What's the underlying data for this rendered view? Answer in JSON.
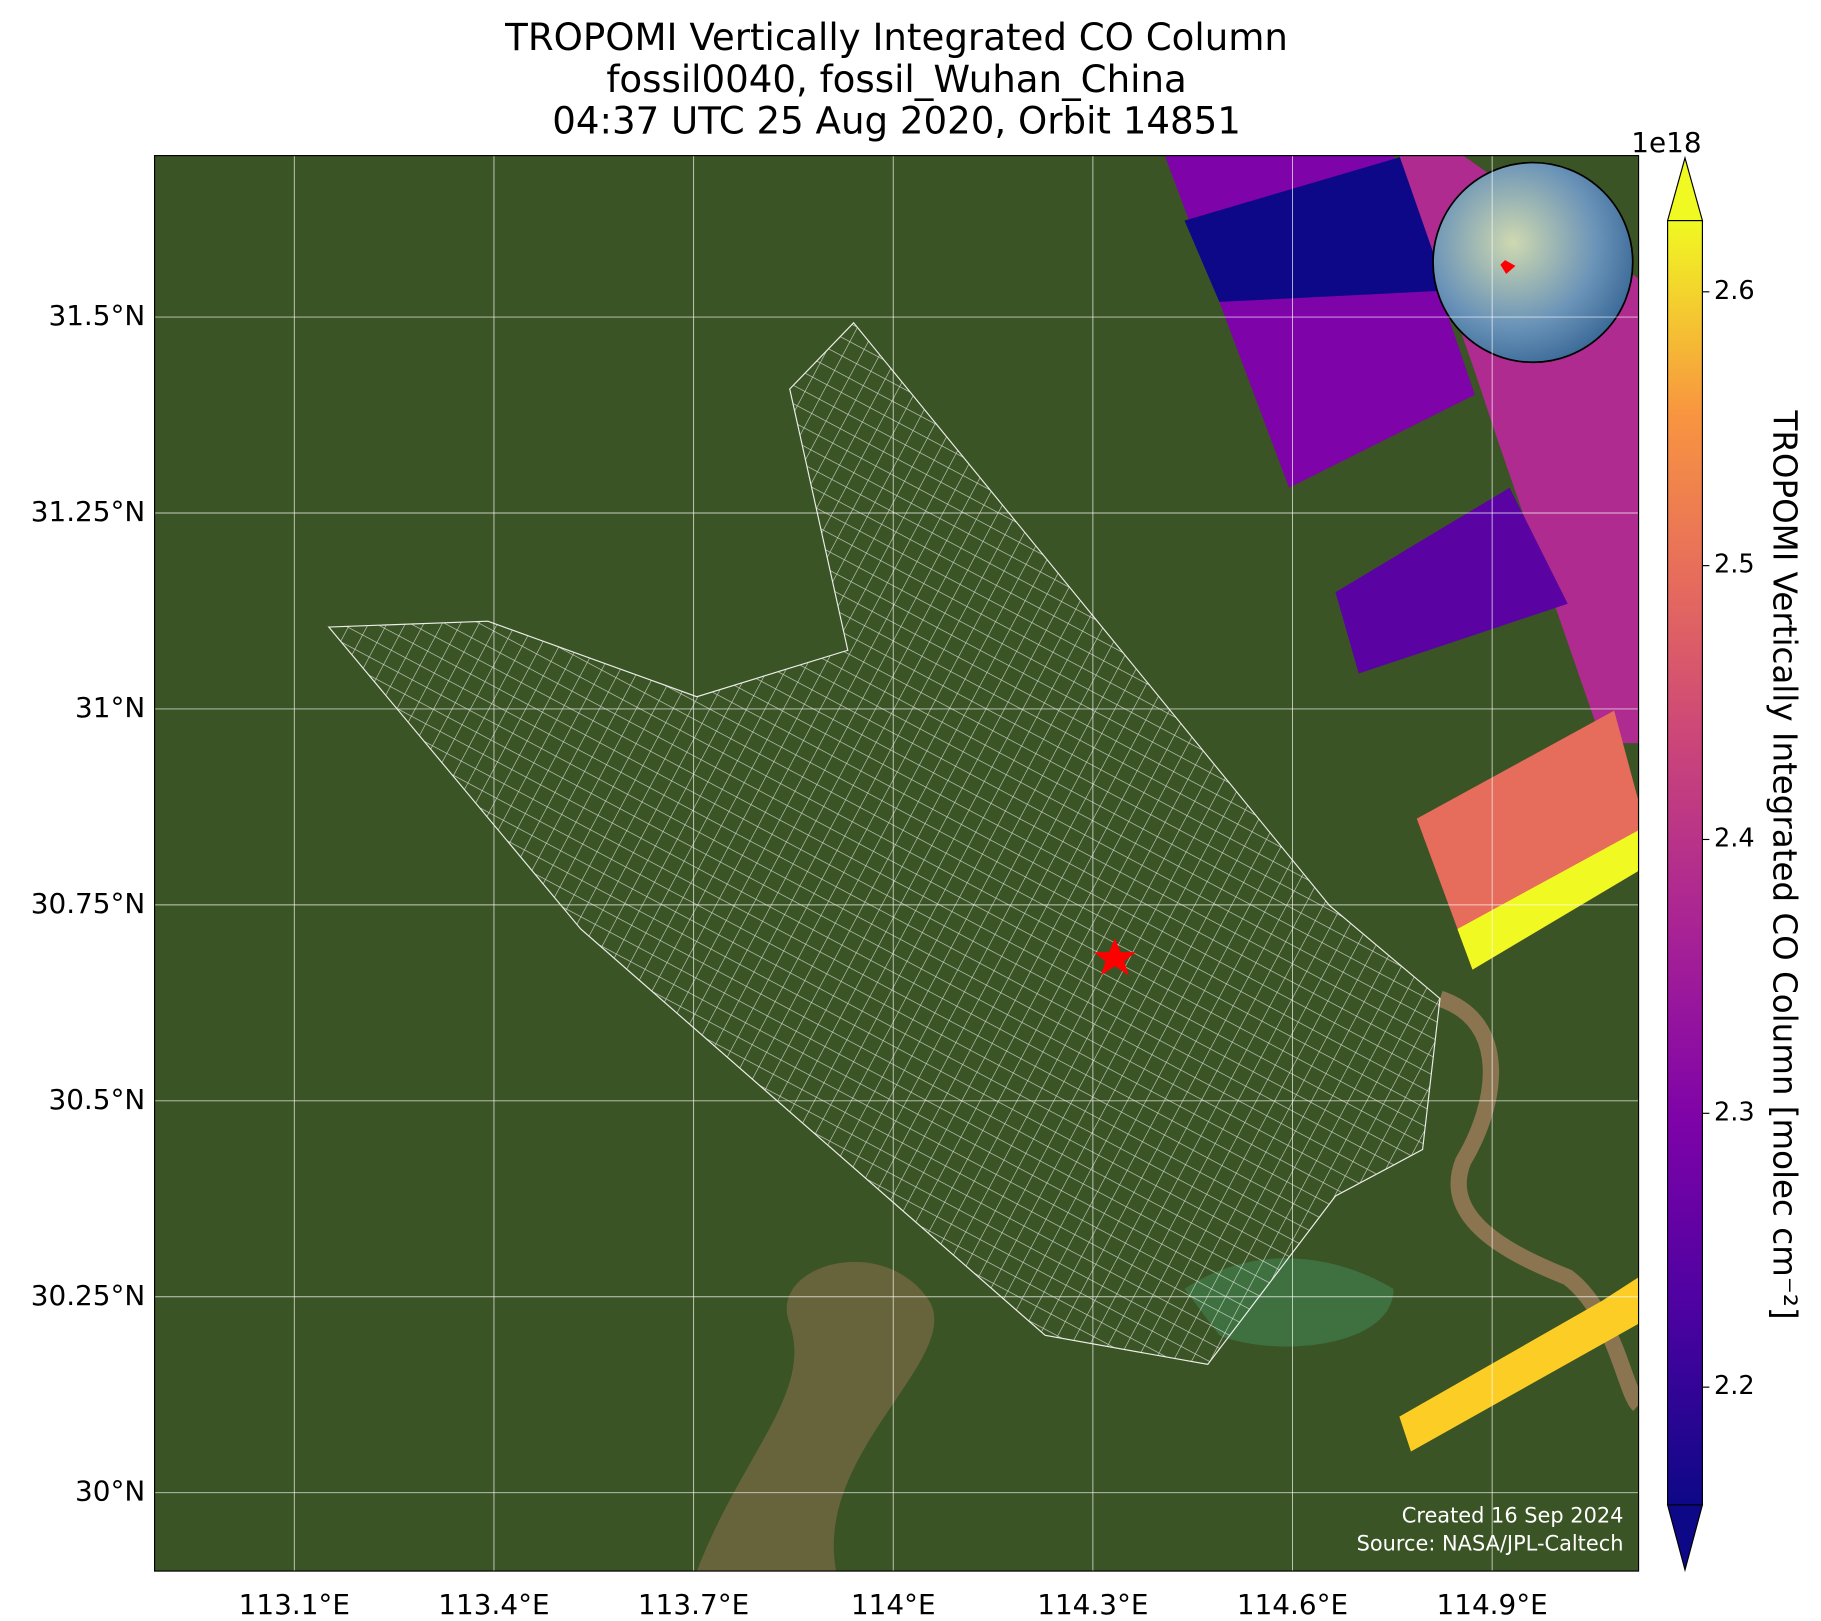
{
  "chart_data": {
    "type": "map",
    "title": [
      "TROPOMI Vertically Integrated CO Column",
      "fossil0040, fossil_Wuhan_China",
      "04:37 UTC 25 Aug 2020, Orbit 14851"
    ],
    "xlim": [
      112.89,
      115.12
    ],
    "ylim": [
      29.9,
      31.706
    ],
    "xticks": [
      {
        "value": 113.1,
        "label": "113.1°E"
      },
      {
        "value": 113.4,
        "label": "113.4°E"
      },
      {
        "value": 113.7,
        "label": "113.7°E"
      },
      {
        "value": 114,
        "label": "114°E"
      },
      {
        "value": 114.3,
        "label": "114.3°E"
      },
      {
        "value": 114.6,
        "label": "114.6°E"
      },
      {
        "value": 114.9,
        "label": "114.9°E"
      }
    ],
    "yticks": [
      {
        "value": 30,
        "label": "30°N"
      },
      {
        "value": 30.25,
        "label": "30.25°N"
      },
      {
        "value": 30.5,
        "label": "30.5°N"
      },
      {
        "value": 30.75,
        "label": "30.75°N"
      },
      {
        "value": 31,
        "label": "31°N"
      },
      {
        "value": 31.25,
        "label": "31.25°N"
      },
      {
        "value": 31.5,
        "label": "31.5°N"
      }
    ],
    "grid": true,
    "colorbar": {
      "label": "TROPOMI Vertically Integrated CO Column [molec cm⁻²]",
      "offset_label": "1e18",
      "clim": [
        2.157,
        2.626
      ],
      "ticks": [
        2.2,
        2.3,
        2.4,
        2.5,
        2.6
      ]
    },
    "footer": [
      "Created 16 Sep 2024",
      "Source: NASA/JPL-Caltech"
    ]
  }
}
